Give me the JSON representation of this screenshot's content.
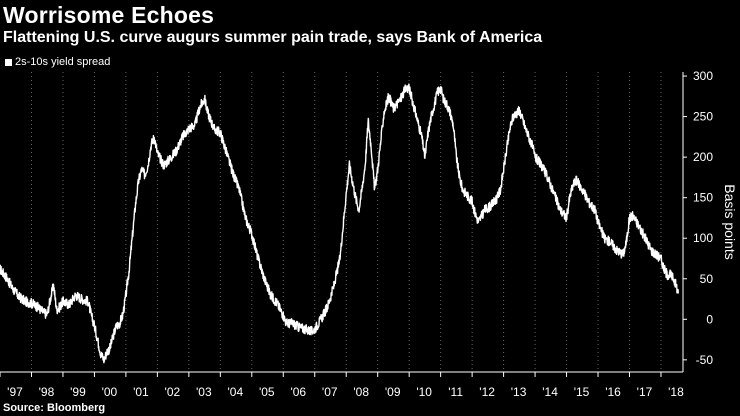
{
  "title": "Worrisome Echoes",
  "subtitle": "Flattening U.S. curve augurs summer pain trade, says Bank of America",
  "source": "Source: Bloomberg",
  "colors": {
    "background": "#000000",
    "line": "#ffffff",
    "grid": "#666666"
  },
  "chart_data": {
    "type": "line",
    "title": "Worrisome Echoes",
    "subtitle": "Flattening U.S. curve augurs summer pain trade, says Bank of America",
    "ylabel": "Basis points",
    "xlabel": "",
    "ylim": [
      -65,
      305
    ],
    "xlim": [
      1997.0,
      2018.7
    ],
    "y_ticks": [
      300,
      250,
      200,
      150,
      100,
      50,
      0,
      -50
    ],
    "x_ticks": [
      {
        "x": 1997,
        "label": "'97"
      },
      {
        "x": 1998,
        "label": "'98"
      },
      {
        "x": 1999,
        "label": "'99"
      },
      {
        "x": 2000,
        "label": "'00"
      },
      {
        "x": 2001,
        "label": "'01"
      },
      {
        "x": 2002,
        "label": "'02"
      },
      {
        "x": 2003,
        "label": "'03"
      },
      {
        "x": 2004,
        "label": "'04"
      },
      {
        "x": 2005,
        "label": "'05"
      },
      {
        "x": 2006,
        "label": "'06"
      },
      {
        "x": 2007,
        "label": "'07"
      },
      {
        "x": 2008,
        "label": "'08"
      },
      {
        "x": 2009,
        "label": "'09"
      },
      {
        "x": 2010,
        "label": "'10"
      },
      {
        "x": 2011,
        "label": "'11"
      },
      {
        "x": 2012,
        "label": "'12"
      },
      {
        "x": 2013,
        "label": "'13"
      },
      {
        "x": 2014,
        "label": "'14"
      },
      {
        "x": 2015,
        "label": "'15"
      },
      {
        "x": 2016,
        "label": "'16"
      },
      {
        "x": 2017,
        "label": "'17"
      },
      {
        "x": 2018,
        "label": "'18"
      }
    ],
    "grid": "vertical dotted",
    "legend_position": "top-left",
    "series": [
      {
        "name": "2s-10s yield spread",
        "points": [
          [
            1997.0,
            62
          ],
          [
            1997.2,
            52
          ],
          [
            1997.4,
            38
          ],
          [
            1997.6,
            28
          ],
          [
            1997.8,
            22
          ],
          [
            1998.0,
            20
          ],
          [
            1998.2,
            15
          ],
          [
            1998.4,
            8
          ],
          [
            1998.5,
            6
          ],
          [
            1998.6,
            25
          ],
          [
            1998.7,
            42
          ],
          [
            1998.8,
            12
          ],
          [
            1998.9,
            15
          ],
          [
            1999.0,
            22
          ],
          [
            1999.2,
            18
          ],
          [
            1999.4,
            30
          ],
          [
            1999.6,
            25
          ],
          [
            1999.8,
            22
          ],
          [
            1999.9,
            5
          ],
          [
            2000.0,
            -8
          ],
          [
            2000.1,
            -25
          ],
          [
            2000.2,
            -42
          ],
          [
            2000.3,
            -50
          ],
          [
            2000.4,
            -40
          ],
          [
            2000.5,
            -35
          ],
          [
            2000.6,
            -20
          ],
          [
            2000.7,
            -8
          ],
          [
            2000.8,
            -5
          ],
          [
            2000.9,
            5
          ],
          [
            2001.0,
            30
          ],
          [
            2001.1,
            60
          ],
          [
            2001.2,
            100
          ],
          [
            2001.3,
            140
          ],
          [
            2001.4,
            170
          ],
          [
            2001.5,
            185
          ],
          [
            2001.6,
            178
          ],
          [
            2001.7,
            190
          ],
          [
            2001.8,
            215
          ],
          [
            2001.9,
            225
          ],
          [
            2002.0,
            205
          ],
          [
            2002.2,
            190
          ],
          [
            2002.4,
            198
          ],
          [
            2002.6,
            208
          ],
          [
            2002.8,
            225
          ],
          [
            2003.0,
            235
          ],
          [
            2003.2,
            240
          ],
          [
            2003.35,
            262
          ],
          [
            2003.5,
            272
          ],
          [
            2003.6,
            255
          ],
          [
            2003.8,
            235
          ],
          [
            2004.0,
            230
          ],
          [
            2004.2,
            205
          ],
          [
            2004.4,
            180
          ],
          [
            2004.6,
            160
          ],
          [
            2004.8,
            125
          ],
          [
            2005.0,
            105
          ],
          [
            2005.2,
            75
          ],
          [
            2005.4,
            50
          ],
          [
            2005.6,
            30
          ],
          [
            2005.8,
            20
          ],
          [
            2006.0,
            5
          ],
          [
            2006.1,
            -5
          ],
          [
            2006.3,
            -5
          ],
          [
            2006.5,
            -10
          ],
          [
            2006.7,
            -12
          ],
          [
            2006.9,
            -15
          ],
          [
            2007.0,
            -12
          ],
          [
            2007.2,
            0
          ],
          [
            2007.4,
            15
          ],
          [
            2007.6,
            40
          ],
          [
            2007.8,
            75
          ],
          [
            2007.9,
            115
          ],
          [
            2008.0,
            155
          ],
          [
            2008.1,
            190
          ],
          [
            2008.2,
            170
          ],
          [
            2008.3,
            150
          ],
          [
            2008.4,
            135
          ],
          [
            2008.5,
            160
          ],
          [
            2008.6,
            190
          ],
          [
            2008.7,
            245
          ],
          [
            2008.8,
            210
          ],
          [
            2008.9,
            160
          ],
          [
            2009.0,
            185
          ],
          [
            2009.1,
            220
          ],
          [
            2009.2,
            255
          ],
          [
            2009.35,
            275
          ],
          [
            2009.5,
            260
          ],
          [
            2009.7,
            270
          ],
          [
            2009.9,
            285
          ],
          [
            2010.0,
            285
          ],
          [
            2010.1,
            270
          ],
          [
            2010.2,
            255
          ],
          [
            2010.3,
            240
          ],
          [
            2010.4,
            225
          ],
          [
            2010.5,
            200
          ],
          [
            2010.6,
            230
          ],
          [
            2010.7,
            250
          ],
          [
            2010.8,
            265
          ],
          [
            2010.9,
            280
          ],
          [
            2011.0,
            285
          ],
          [
            2011.1,
            270
          ],
          [
            2011.2,
            265
          ],
          [
            2011.3,
            255
          ],
          [
            2011.4,
            240
          ],
          [
            2011.5,
            200
          ],
          [
            2011.6,
            175
          ],
          [
            2011.7,
            160
          ],
          [
            2011.9,
            150
          ],
          [
            2012.0,
            145
          ],
          [
            2012.1,
            130
          ],
          [
            2012.2,
            120
          ],
          [
            2012.4,
            135
          ],
          [
            2012.6,
            140
          ],
          [
            2012.8,
            150
          ],
          [
            2012.9,
            160
          ],
          [
            2013.0,
            185
          ],
          [
            2013.1,
            210
          ],
          [
            2013.2,
            235
          ],
          [
            2013.3,
            250
          ],
          [
            2013.5,
            258
          ],
          [
            2013.7,
            235
          ],
          [
            2013.9,
            215
          ],
          [
            2014.0,
            200
          ],
          [
            2014.2,
            190
          ],
          [
            2014.4,
            175
          ],
          [
            2014.6,
            155
          ],
          [
            2014.8,
            135
          ],
          [
            2015.0,
            125
          ],
          [
            2015.1,
            150
          ],
          [
            2015.2,
            165
          ],
          [
            2015.3,
            172
          ],
          [
            2015.5,
            160
          ],
          [
            2015.7,
            145
          ],
          [
            2015.9,
            135
          ],
          [
            2016.0,
            120
          ],
          [
            2016.2,
            100
          ],
          [
            2016.4,
            95
          ],
          [
            2016.6,
            85
          ],
          [
            2016.8,
            80
          ],
          [
            2016.9,
            95
          ],
          [
            2017.0,
            125
          ],
          [
            2017.1,
            128
          ],
          [
            2017.3,
            115
          ],
          [
            2017.5,
            100
          ],
          [
            2017.7,
            85
          ],
          [
            2017.9,
            78
          ],
          [
            2018.0,
            75
          ],
          [
            2018.1,
            62
          ],
          [
            2018.2,
            55
          ],
          [
            2018.3,
            55
          ],
          [
            2018.4,
            50
          ],
          [
            2018.5,
            40
          ],
          [
            2018.55,
            32
          ]
        ]
      }
    ]
  }
}
